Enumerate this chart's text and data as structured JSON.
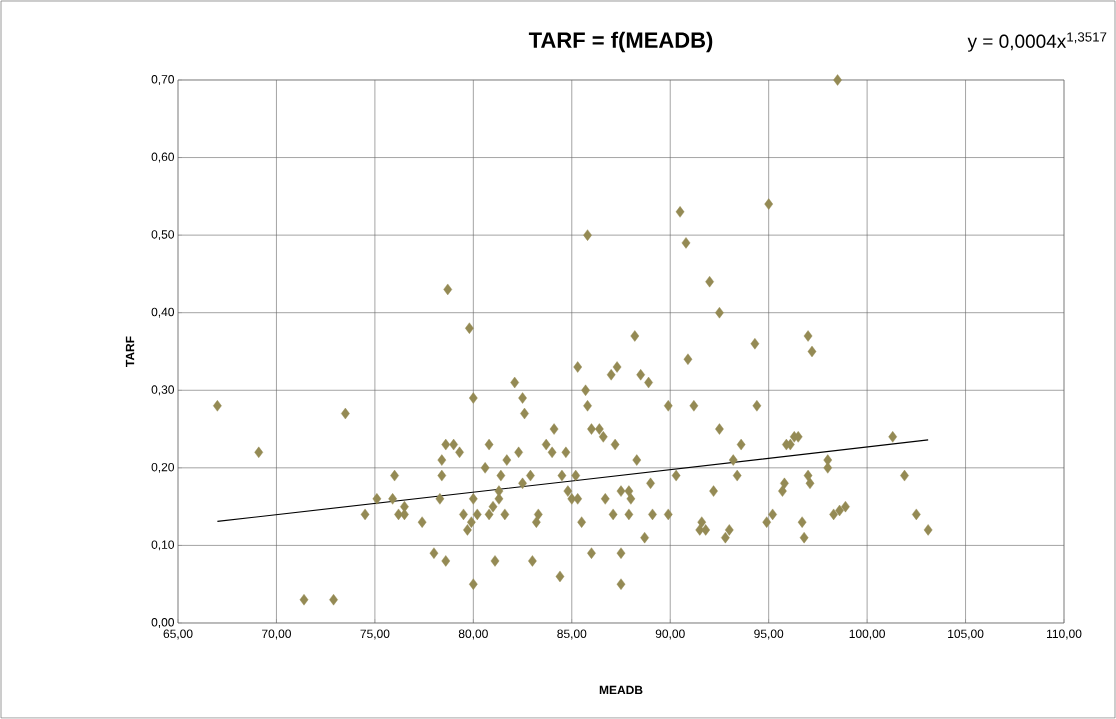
{
  "chart_data": {
    "type": "scatter",
    "title": "TARF = f(MEADB)",
    "xlabel": "MEADB",
    "ylabel": "TARF",
    "annotations": [
      "y = 0,0004x$^{1,3517}$"
    ],
    "xlim": [
      65,
      110
    ],
    "ylim": [
      0,
      0.7
    ],
    "xticks": [
      {
        "value": 65,
        "label": "65,00"
      },
      {
        "value": 70,
        "label": "70,00"
      },
      {
        "value": 75,
        "label": "75,00"
      },
      {
        "value": 80,
        "label": "80,00"
      },
      {
        "value": 85,
        "label": "85,00"
      },
      {
        "value": 90,
        "label": "90,00"
      },
      {
        "value": 95,
        "label": "95,00"
      },
      {
        "value": 100,
        "label": "100,00"
      },
      {
        "value": 105,
        "label": "105,00"
      },
      {
        "value": 110,
        "label": "110,00"
      }
    ],
    "yticks": [
      {
        "value": 0,
        "label": "0,00"
      },
      {
        "value": 0.1,
        "label": "0,10"
      },
      {
        "value": 0.2,
        "label": "0,20"
      },
      {
        "value": 0.3,
        "label": "0,30"
      },
      {
        "value": 0.4,
        "label": "0,40"
      },
      {
        "value": 0.5,
        "label": "0,50"
      },
      {
        "value": 0.6,
        "label": "0,60"
      },
      {
        "value": 0.7,
        "label": "0,70"
      }
    ],
    "grid": true,
    "marker": "diamond",
    "series": [
      {
        "color": "#948a54",
        "x": [
          67.0,
          69.1,
          71.4,
          72.9,
          73.5,
          74.5,
          75.1,
          75.9,
          76.0,
          76.2,
          76.5,
          76.5,
          77.4,
          78.0,
          78.3,
          78.4,
          78.4,
          78.6,
          78.6,
          78.7,
          79.0,
          79.3,
          79.5,
          79.7,
          79.8,
          79.9,
          80.0,
          80.0,
          80.0,
          80.2,
          80.6,
          80.8,
          80.8,
          81.0,
          81.1,
          81.3,
          81.3,
          81.4,
          81.6,
          81.7,
          82.1,
          82.3,
          82.5,
          82.5,
          82.6,
          82.9,
          83.0,
          83.2,
          83.3,
          83.7,
          84.0,
          84.1,
          84.4,
          84.5,
          84.7,
          84.8,
          85.0,
          85.2,
          85.3,
          85.3,
          85.5,
          85.7,
          85.8,
          85.8,
          86.0,
          86.0,
          86.4,
          86.6,
          86.7,
          87.0,
          87.1,
          87.2,
          87.3,
          87.5,
          87.5,
          87.5,
          87.9,
          87.9,
          88.0,
          88.2,
          88.3,
          88.5,
          88.7,
          88.9,
          89.0,
          89.1,
          89.9,
          89.9,
          90.3,
          90.5,
          90.8,
          90.9,
          91.2,
          91.5,
          91.6,
          91.8,
          92.0,
          92.2,
          92.5,
          92.5,
          92.8,
          93.0,
          93.2,
          93.4,
          93.6,
          94.3,
          94.4,
          94.9,
          95.0,
          95.2,
          95.7,
          95.8,
          95.9,
          96.1,
          96.3,
          96.5,
          96.7,
          96.8,
          97.0,
          97.0,
          97.1,
          97.2,
          98.0,
          98.0,
          98.3,
          98.5,
          98.6,
          98.9,
          101.3,
          101.9,
          102.5,
          103.1
        ],
        "values": [
          0.28,
          0.22,
          0.03,
          0.03,
          0.27,
          0.14,
          0.16,
          0.16,
          0.19,
          0.14,
          0.15,
          0.14,
          0.13,
          0.09,
          0.16,
          0.21,
          0.19,
          0.08,
          0.23,
          0.43,
          0.23,
          0.22,
          0.14,
          0.12,
          0.38,
          0.13,
          0.05,
          0.29,
          0.16,
          0.14,
          0.2,
          0.23,
          0.14,
          0.15,
          0.08,
          0.16,
          0.17,
          0.19,
          0.14,
          0.21,
          0.31,
          0.22,
          0.29,
          0.18,
          0.27,
          0.19,
          0.08,
          0.13,
          0.14,
          0.23,
          0.22,
          0.25,
          0.06,
          0.19,
          0.22,
          0.17,
          0.16,
          0.19,
          0.16,
          0.33,
          0.13,
          0.3,
          0.5,
          0.28,
          0.25,
          0.09,
          0.25,
          0.24,
          0.16,
          0.32,
          0.14,
          0.23,
          0.33,
          0.17,
          0.09,
          0.05,
          0.14,
          0.17,
          0.16,
          0.37,
          0.21,
          0.32,
          0.11,
          0.31,
          0.18,
          0.14,
          0.14,
          0.28,
          0.19,
          0.53,
          0.49,
          0.34,
          0.28,
          0.12,
          0.13,
          0.12,
          0.44,
          0.17,
          0.4,
          0.25,
          0.11,
          0.12,
          0.21,
          0.19,
          0.23,
          0.36,
          0.28,
          0.13,
          0.54,
          0.14,
          0.17,
          0.18,
          0.23,
          0.23,
          0.24,
          0.24,
          0.13,
          0.11,
          0.37,
          0.19,
          0.18,
          0.35,
          0.21,
          0.2,
          0.14,
          0.7,
          0.145,
          0.15,
          0.24,
          0.19,
          0.14,
          0.12
        ]
      },
      {
        "type": "line",
        "color": "#000000",
        "marker": "none",
        "x": [
          67.0,
          85.0,
          103.1
        ],
        "values": [
          0.131,
          0.183,
          0.236
        ]
      }
    ]
  }
}
